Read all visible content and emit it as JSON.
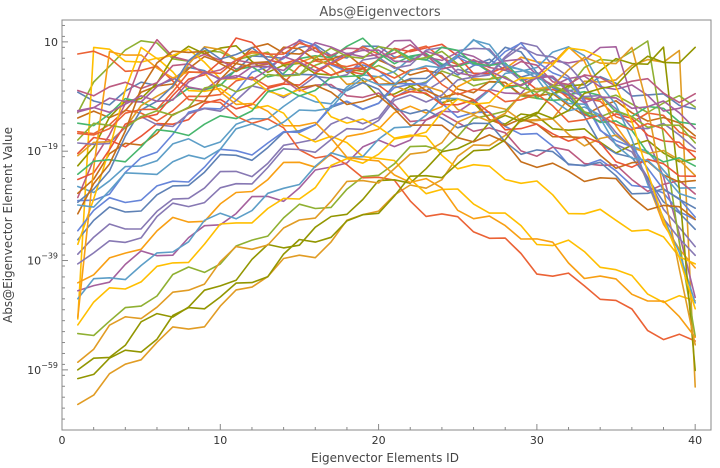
{
  "chart_data": {
    "type": "line",
    "title": "Abs@Eigenvectors",
    "xlabel": "Eigenvector Elements ID",
    "ylabel": "Abs@Eigenvector Element Value",
    "xlim": [
      0,
      41
    ],
    "ylim": [
      -70,
      5
    ],
    "y_scale": "log10",
    "x_ticks": [
      {
        "value": 0,
        "label": "0"
      },
      {
        "value": 10,
        "label": "10"
      },
      {
        "value": 20,
        "label": "20"
      },
      {
        "value": 30,
        "label": "30"
      },
      {
        "value": 40,
        "label": "40"
      }
    ],
    "y_ticks": [
      {
        "value": 1,
        "base": "10",
        "exp": ""
      },
      {
        "value": -19,
        "base": "10",
        "exp": "−19"
      },
      {
        "value": -39,
        "base": "10",
        "exp": "−39"
      },
      {
        "value": -59,
        "base": "10",
        "exp": "−59"
      }
    ],
    "x_values": [
      1,
      2,
      3,
      4,
      5,
      6,
      7,
      8,
      9,
      10,
      11,
      12,
      13,
      14,
      15,
      16,
      17,
      18,
      19,
      20,
      21,
      22,
      23,
      24,
      25,
      26,
      27,
      28,
      29,
      30,
      31,
      32,
      33,
      34,
      35,
      36,
      37,
      38,
      39,
      40
    ],
    "series_count": 40,
    "peak_positions": [
      17,
      39,
      4,
      21,
      30,
      12,
      26,
      2,
      35,
      8,
      23,
      15,
      32,
      6,
      19,
      28,
      10,
      37,
      1,
      25,
      14,
      33,
      5,
      22,
      38,
      11,
      29,
      3,
      17,
      24,
      9,
      36,
      20,
      13,
      31,
      7,
      27,
      34,
      18,
      40
    ],
    "floor_values": [
      -10.0,
      -64.0,
      -11.2,
      -16.0,
      -37.0,
      -14.5,
      -26.0,
      -48.0,
      -45.0,
      -21.0,
      -19.5,
      -30.0,
      -42.0,
      -27.0,
      -14.0,
      -34.0,
      -21.5,
      -53.0,
      -55.0,
      -18.0,
      -25.5,
      -46.0,
      -38.0,
      -11.0,
      -59.0,
      -24.0,
      -32.0,
      -51.0,
      -8.5,
      -22.5,
      -29.0,
      -56.0,
      -16.8,
      -17.5,
      -39.0,
      -31.0,
      -28.5,
      -49.0,
      -13.0,
      -61.0
    ],
    "colors": [
      "#5E81B5",
      "#E19C24",
      "#8FB032",
      "#EB6235",
      "#8778B3",
      "#C56E1A",
      "#5D9EC7",
      "#FFBF00",
      "#A5609D",
      "#929600",
      "#E95536",
      "#6685D9",
      "#F89F13",
      "#BC5B80",
      "#47B66D"
    ]
  }
}
